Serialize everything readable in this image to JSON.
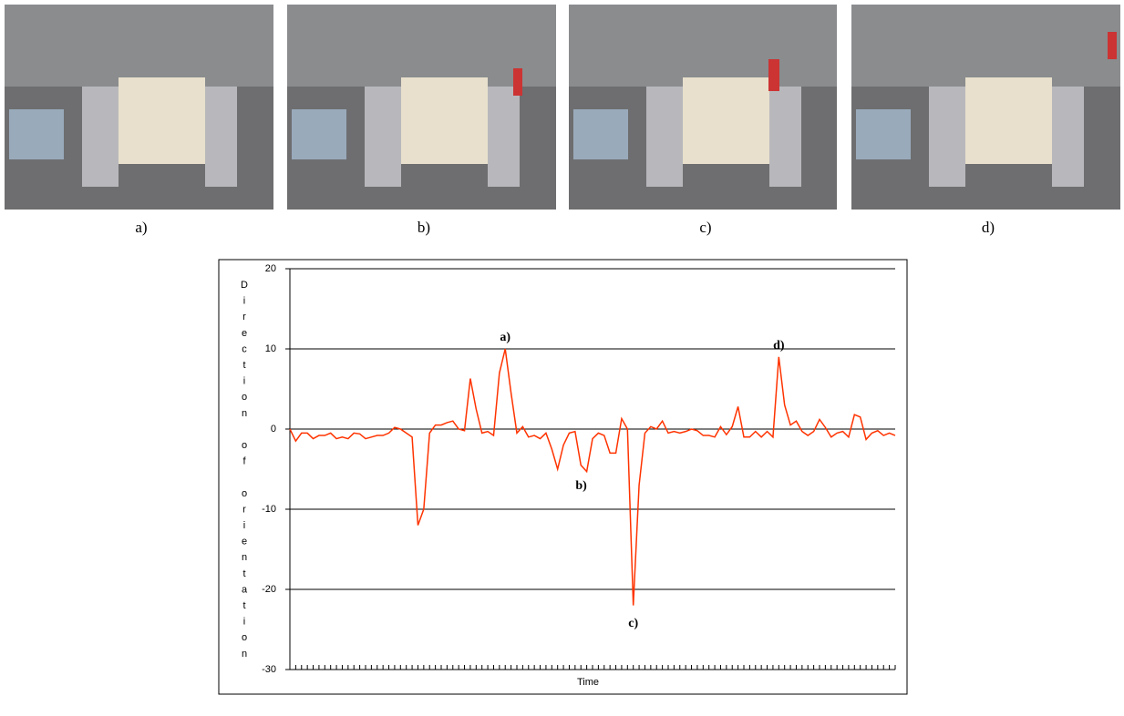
{
  "figure": {
    "panels": [
      "a)",
      "b)",
      "c)",
      "d)"
    ]
  },
  "chart_data": {
    "type": "line",
    "ylabel": "Direction of orientation",
    "xlabel": "Time",
    "ylim": [
      -30,
      20
    ],
    "yticks": [
      -30,
      -20,
      -10,
      0,
      10,
      20
    ],
    "grid": true,
    "color": "#ff3300",
    "values": [
      0,
      -1.5,
      -0.5,
      -0.5,
      -1.2,
      -0.8,
      -0.8,
      -0.5,
      -1.2,
      -1,
      -1.2,
      -0.5,
      -0.6,
      -1.2,
      -1,
      -0.8,
      -0.8,
      -0.5,
      0.2,
      0,
      -0.5,
      -1,
      -12,
      -10,
      -0.5,
      0.5,
      0.5,
      0.8,
      1,
      0,
      -0.2,
      6.3,
      2.5,
      -0.5,
      -0.3,
      -0.8,
      7,
      10,
      4.5,
      -0.5,
      0.3,
      -1,
      -0.8,
      -1.2,
      -0.5,
      -2.5,
      -5,
      -2,
      -0.5,
      -0.3,
      -4.5,
      -5.3,
      -1.2,
      -0.5,
      -0.8,
      -3,
      -3,
      1.3,
      0,
      -22,
      -7,
      -0.5,
      0.3,
      0,
      1,
      -0.5,
      -0.3,
      -0.5,
      -0.3,
      0,
      -0.2,
      -0.8,
      -0.8,
      -1,
      0.3,
      -0.7,
      0.3,
      2.8,
      -1,
      -1,
      -0.3,
      -1,
      -0.3,
      -1,
      9,
      3,
      0.5,
      1,
      -0.3,
      -0.8,
      -0.3,
      1.2,
      0.2,
      -1,
      -0.5,
      -0.3,
      -1,
      1.8,
      1.5,
      -1.3,
      -0.5,
      -0.2,
      -0.8,
      -0.5,
      -0.8
    ],
    "annotations": [
      "a)",
      "b)",
      "c)",
      "d)"
    ]
  }
}
